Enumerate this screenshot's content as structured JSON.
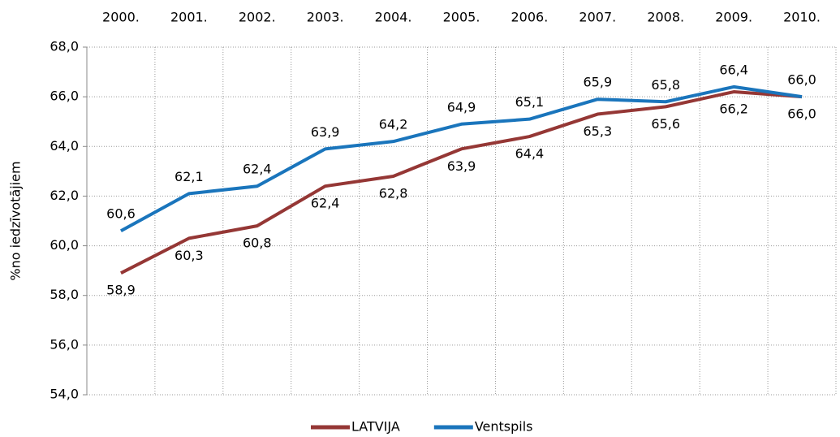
{
  "chart_data": {
    "type": "line",
    "y_label": "%no iedzīvotājiem",
    "categories": [
      "2000.",
      "2001.",
      "2002.",
      "2003.",
      "2004.",
      "2005.",
      "2006.",
      "2007.",
      "2008.",
      "2009.",
      "2010."
    ],
    "series": [
      {
        "name": "LATVIJA",
        "color": "#953735",
        "values": [
          58.9,
          60.3,
          60.8,
          62.4,
          62.8,
          63.9,
          64.4,
          65.3,
          65.6,
          66.2,
          66.0
        ],
        "value_labels": [
          "58,9",
          "60,3",
          "60,8",
          "62,4",
          "62,8",
          "63,9",
          "64,4",
          "65,3",
          "65,6",
          "66,2",
          "66,0"
        ]
      },
      {
        "name": "Ventspils",
        "color": "#1a75bc",
        "values": [
          60.6,
          62.1,
          62.4,
          63.9,
          64.2,
          64.9,
          65.1,
          65.9,
          65.8,
          66.4,
          66.0
        ],
        "value_labels": [
          "60,6",
          "62,1",
          "62,4",
          "63,9",
          "64,2",
          "64,9",
          "65,1",
          "65,9",
          "65,8",
          "66,4",
          "66,0"
        ]
      }
    ],
    "ylim": [
      54,
      68
    ],
    "yticks": [
      {
        "value": 54,
        "label": "54,0"
      },
      {
        "value": 56,
        "label": "56,0"
      },
      {
        "value": 58,
        "label": "58,0"
      },
      {
        "value": 60,
        "label": "60,0"
      },
      {
        "value": 62,
        "label": "62,0"
      },
      {
        "value": 64,
        "label": "64,0"
      },
      {
        "value": 66,
        "label": "66,0"
      },
      {
        "value": 68,
        "label": "68,0"
      }
    ],
    "grid": true,
    "legend": "bottom"
  }
}
